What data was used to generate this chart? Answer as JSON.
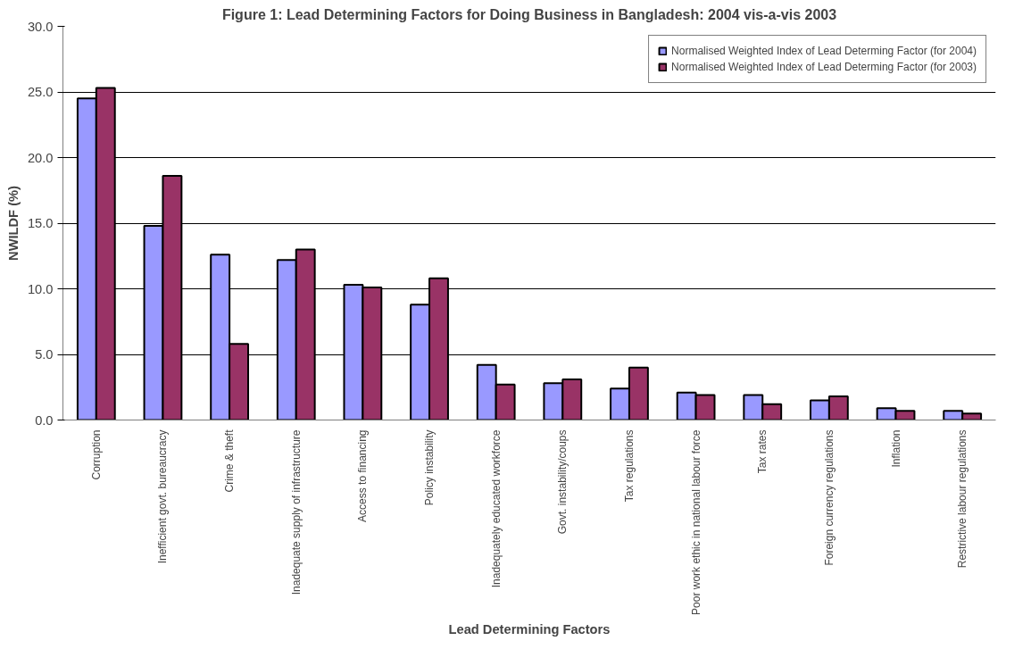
{
  "chart_data": {
    "type": "bar",
    "title": "Figure 1: Lead Determining Factors for Doing Business in Bangladesh: 2004 vis-a-vis 2003",
    "xlabel": "Lead Determining Factors",
    "ylabel": "NWILDF (%)",
    "categories": [
      "Corruption",
      "Inefficient govt. bureaucracy",
      "Crime & theft",
      "Inadequate supply of infrastructure",
      "Access to financing",
      "Policy instability",
      "Inadequately educated workforce",
      "Govt. instability/coups",
      "Tax regulations",
      "Poor work ethic in national labour force",
      "Tax rates",
      "Foreign currency regulations",
      "Inflation",
      "Restrictive labour regulations"
    ],
    "series": [
      {
        "name": "Normalised Weighted Index of Lead Determing Factor (for 2004)",
        "color": "#9999ff",
        "values": [
          24.5,
          14.8,
          12.6,
          12.2,
          10.3,
          8.8,
          4.2,
          2.8,
          2.4,
          2.1,
          1.9,
          1.5,
          0.9,
          0.7
        ]
      },
      {
        "name": "Normalised Weighted Index of Lead Determing Factor (for 2003)",
        "color": "#993366",
        "values": [
          25.3,
          18.6,
          5.8,
          13.0,
          10.1,
          10.8,
          2.7,
          3.1,
          4.0,
          1.9,
          1.2,
          1.8,
          0.7,
          0.5
        ]
      }
    ],
    "ylim": [
      0,
      30
    ],
    "yticks": [
      {
        "value": 0,
        "label": "0.0"
      },
      {
        "value": 5,
        "label": "5.0"
      },
      {
        "value": 10,
        "label": "10.0"
      },
      {
        "value": 15,
        "label": "15.0"
      },
      {
        "value": 20,
        "label": "20.0"
      },
      {
        "value": 25,
        "label": "25.0"
      },
      {
        "value": 30,
        "label": "30.0"
      }
    ],
    "grid": "y",
    "legend": "top right"
  }
}
